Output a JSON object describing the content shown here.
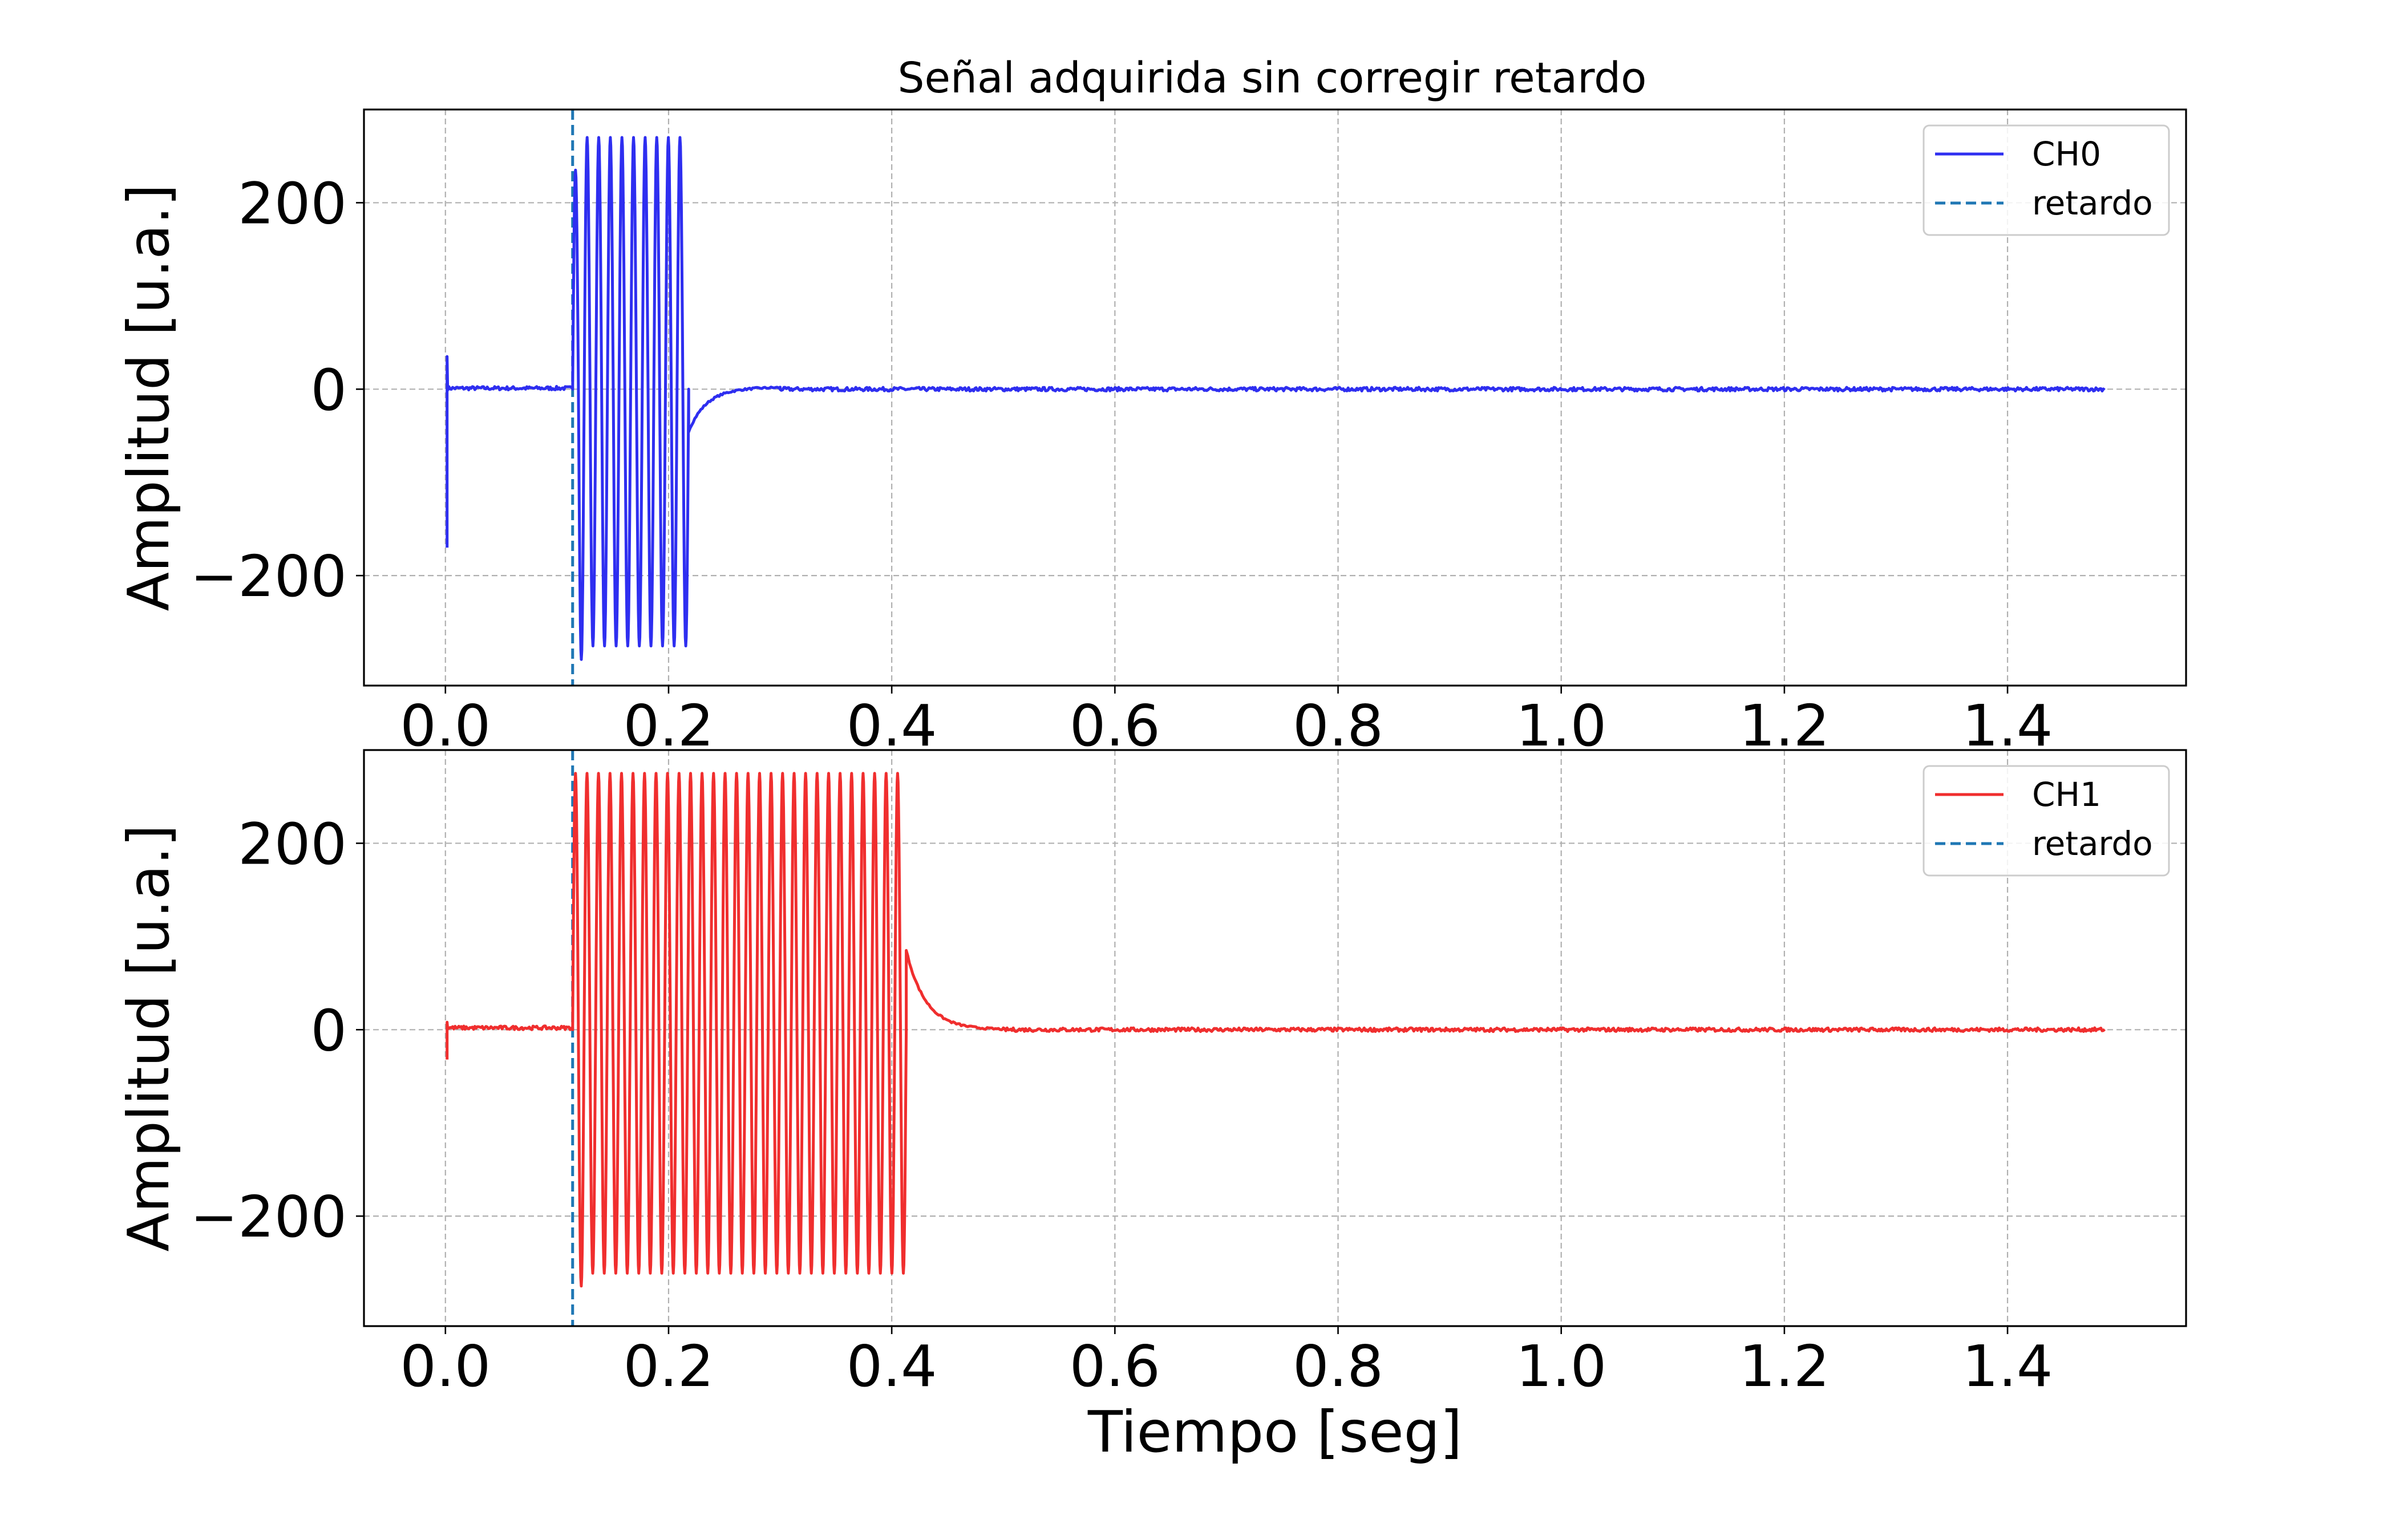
{
  "chart_data": [
    {
      "type": "line",
      "title": "Señal adquirida sin corregir retardo",
      "xlabel": "",
      "ylabel": "Amplitud [u.a.]",
      "xlim": [
        -0.073,
        1.56
      ],
      "ylim": [
        -318,
        300
      ],
      "xticks": [
        "0.0",
        "0.2",
        "0.4",
        "0.6",
        "0.8",
        "1.0",
        "1.2",
        "1.4"
      ],
      "yticks": [
        "−200",
        "0",
        "200"
      ],
      "grid": true,
      "legend_position": "upper right",
      "series": [
        {
          "name": "CH0",
          "color": "#2e2ef0",
          "style": "solid",
          "segments": [
            {
              "kind": "spike",
              "x": 0.0015,
              "values": [
                -170,
                35
              ]
            },
            {
              "kind": "flat",
              "x_start": 0.002,
              "x_end": 0.114,
              "value": 1
            },
            {
              "kind": "oscillation",
              "x_start": 0.114,
              "x_end": 0.218,
              "cycles": 10,
              "min": -290,
              "max": 270,
              "first_max": 235
            },
            {
              "kind": "decay",
              "x_start": 0.218,
              "x_end": 0.3,
              "from": -45,
              "to": 2
            },
            {
              "kind": "flat",
              "x_start": 0.3,
              "x_end": 1.487,
              "value": 0
            }
          ]
        },
        {
          "name": "retardo",
          "color": "#1f77b4",
          "style": "dashed",
          "vline_x": 0.114
        }
      ]
    },
    {
      "type": "line",
      "title": "",
      "xlabel": "Tiempo [seg]",
      "ylabel": "Amplitud [u.a.]",
      "xlim": [
        -0.073,
        1.56
      ],
      "ylim": [
        -318,
        300
      ],
      "xticks": [
        "0.0",
        "0.2",
        "0.4",
        "0.6",
        "0.8",
        "1.0",
        "1.2",
        "1.4"
      ],
      "yticks": [
        "−200",
        "0",
        "200"
      ],
      "grid": true,
      "legend_position": "upper right",
      "series": [
        {
          "name": "CH1",
          "color": "#f02e2e",
          "style": "solid",
          "segments": [
            {
              "kind": "spike",
              "x": 0.0015,
              "values": [
                -32,
                8
              ]
            },
            {
              "kind": "flat",
              "x_start": 0.002,
              "x_end": 0.114,
              "value": 2
            },
            {
              "kind": "oscillation",
              "x_start": 0.114,
              "x_end": 0.413,
              "cycles": 29,
              "min": -275,
              "max": 275,
              "first_max": 275
            },
            {
              "kind": "decay",
              "x_start": 0.413,
              "x_end": 0.5,
              "from": 85,
              "to": 0
            },
            {
              "kind": "flat",
              "x_start": 0.5,
              "x_end": 1.487,
              "value": 0
            }
          ]
        },
        {
          "name": "retardo",
          "color": "#1f77b4",
          "style": "dashed",
          "vline_x": 0.114
        }
      ]
    }
  ]
}
